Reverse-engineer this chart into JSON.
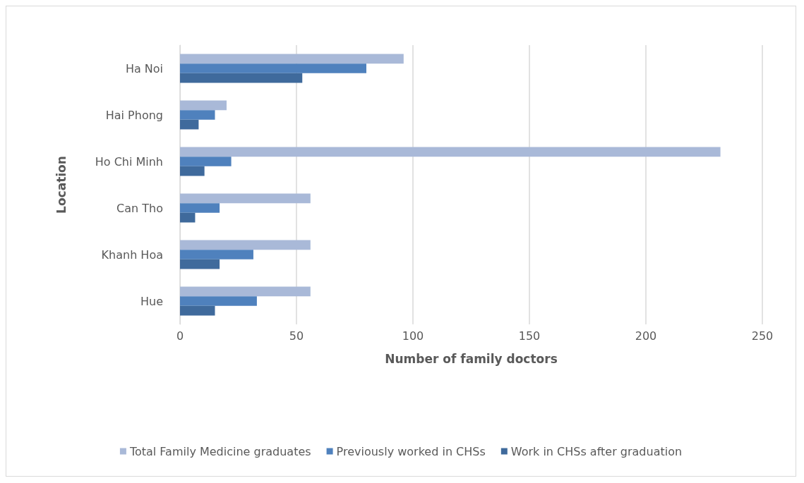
{
  "chart_data": {
    "type": "bar",
    "orientation": "horizontal",
    "xlabel": "Number of family doctors",
    "ylabel": "Location",
    "categories": [
      "Ha Noi",
      "Hai Phong",
      "Ho Chi Minh",
      "Can Tho",
      "Khanh Hoa",
      "Hue"
    ],
    "series": [
      {
        "name": "Total Family Medicine graduates",
        "color": "#a9b9d8",
        "values": [
          96,
          20,
          232,
          56,
          56,
          56
        ]
      },
      {
        "name": "Previously worked in CHSs",
        "color": "#4f81bd",
        "values": [
          80,
          15,
          22,
          17,
          31.5,
          33
        ]
      },
      {
        "name": "Work in CHSs after graduation",
        "color": "#3f6a9c",
        "values": [
          52.5,
          8,
          10.5,
          6.5,
          17,
          15
        ]
      }
    ],
    "xlim": [
      0,
      250
    ],
    "xticks": [
      0,
      50,
      100,
      150,
      200,
      250
    ],
    "grid": "x",
    "legend": "bottom"
  }
}
